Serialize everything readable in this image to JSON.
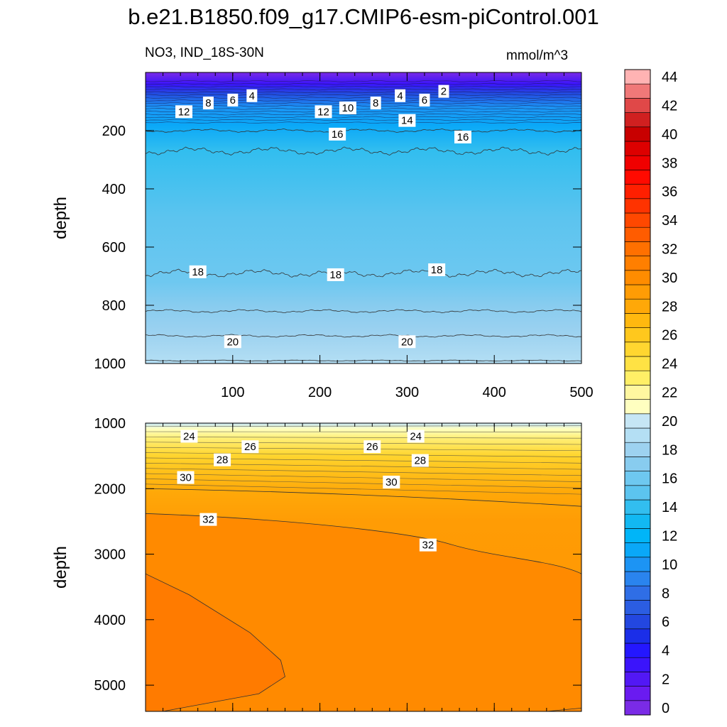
{
  "figure": {
    "title": "b.e21.B1850.f09_g17.CMIP6-esm-piControl.001",
    "subtitle": "NO3, IND_18S-30N",
    "units": "mmol/m^3"
  },
  "chart_data": [
    {
      "type": "contour",
      "panel": "upper",
      "xlim": [
        0,
        500
      ],
      "ylim": [
        1000,
        0
      ],
      "xticks": [
        "100",
        "200",
        "300",
        "400",
        "500"
      ],
      "xtick_values": [
        100,
        200,
        300,
        400,
        500
      ],
      "yticks": [
        "200",
        "400",
        "600",
        "800",
        "1000"
      ],
      "ytick_values": [
        200,
        400,
        600,
        800,
        1000
      ],
      "ylabel": "depth",
      "xlabel": "",
      "contour_lines": [
        {
          "level": 16,
          "depth": 200,
          "amp": 6
        },
        {
          "level": 17,
          "depth": 270,
          "amp": 14
        },
        {
          "level": 18,
          "depth": 690,
          "amp": 14
        },
        {
          "level": 19,
          "depth": 820,
          "amp": 6
        },
        {
          "level": 20,
          "depth": 905,
          "amp": 5
        },
        {
          "level": 21,
          "depth": 990,
          "amp": 2
        }
      ],
      "contour_labels": [
        {
          "text": "2",
          "x": 342,
          "y": 65
        },
        {
          "text": "4",
          "x": 122,
          "y": 80
        },
        {
          "text": "4",
          "x": 292,
          "y": 80
        },
        {
          "text": "6",
          "x": 100,
          "y": 95
        },
        {
          "text": "6",
          "x": 320,
          "y": 95
        },
        {
          "text": "8",
          "x": 72,
          "y": 105
        },
        {
          "text": "8",
          "x": 264,
          "y": 105
        },
        {
          "text": "10",
          "x": 232,
          "y": 122
        },
        {
          "text": "12",
          "x": 44,
          "y": 135
        },
        {
          "text": "12",
          "x": 204,
          "y": 135
        },
        {
          "text": "14",
          "x": 300,
          "y": 165
        },
        {
          "text": "16",
          "x": 220,
          "y": 212
        },
        {
          "text": "16",
          "x": 364,
          "y": 222
        },
        {
          "text": "18",
          "x": 60,
          "y": 685
        },
        {
          "text": "18",
          "x": 218,
          "y": 695
        },
        {
          "text": "18",
          "x": 334,
          "y": 678
        },
        {
          "text": "20",
          "x": 100,
          "y": 925
        },
        {
          "text": "20",
          "x": 300,
          "y": 925
        }
      ]
    },
    {
      "type": "contour",
      "panel": "lower",
      "xlim": [
        0,
        500
      ],
      "ylim": [
        5400,
        1000
      ],
      "yticks": [
        "1000",
        "2000",
        "3000",
        "4000",
        "5000"
      ],
      "ytick_values": [
        1000,
        2000,
        3000,
        4000,
        5000
      ],
      "ylabel": "depth",
      "xlabel": "",
      "contour_lines": [
        {
          "level": 30,
          "depth_left": 2000,
          "depth_right": 2270
        },
        {
          "level": 32,
          "depth_left": 2380,
          "depth_right": 3300
        },
        {
          "level": 33,
          "depth_left": 3300,
          "depth_right": 5350
        }
      ],
      "contour_labels": [
        {
          "text": "24",
          "x": 50,
          "y": 1200
        },
        {
          "text": "24",
          "x": 310,
          "y": 1200
        },
        {
          "text": "26",
          "x": 120,
          "y": 1360
        },
        {
          "text": "26",
          "x": 260,
          "y": 1360
        },
        {
          "text": "28",
          "x": 88,
          "y": 1560
        },
        {
          "text": "28",
          "x": 315,
          "y": 1570
        },
        {
          "text": "30",
          "x": 46,
          "y": 1830
        },
        {
          "text": "30",
          "x": 282,
          "y": 1900
        },
        {
          "text": "32",
          "x": 72,
          "y": 2470
        },
        {
          "text": "32",
          "x": 324,
          "y": 2860
        }
      ]
    },
    {
      "type": "colorbar",
      "levels": [
        0,
        1,
        2,
        3,
        4,
        5,
        6,
        7,
        8,
        9,
        10,
        11,
        12,
        13,
        14,
        15,
        16,
        17,
        18,
        19,
        20,
        21,
        22,
        23,
        24,
        25,
        26,
        27,
        28,
        29,
        30,
        31,
        32,
        33,
        34,
        35,
        36,
        37,
        38,
        39,
        40,
        41,
        42,
        43,
        44
      ],
      "tick_labels": [
        "0",
        "2",
        "4",
        "6",
        "8",
        "10",
        "12",
        "14",
        "16",
        "18",
        "20",
        "22",
        "24",
        "26",
        "28",
        "30",
        "32",
        "34",
        "36",
        "38",
        "40",
        "42",
        "44"
      ],
      "colors": [
        "#7a2be6",
        "#6a1bf0",
        "#5218f5",
        "#3b14fb",
        "#2417ff",
        "#1b2ee8",
        "#2347e0",
        "#2b5de2",
        "#2f6ee6",
        "#2a84ee",
        "#1c94f4",
        "#0aa8f8",
        "#00b5f8",
        "#12b8f2",
        "#32beef",
        "#5cc4ef",
        "#6ec8f0",
        "#88ccef",
        "#9dd2f0",
        "#b4dff4",
        "#c6e6f5",
        "#ffffc0",
        "#fff7a0",
        "#ffef66",
        "#ffe244",
        "#ffd630",
        "#ffc81d",
        "#ffb80f",
        "#ffa808",
        "#ff9c05",
        "#ff8c00",
        "#ff7f00",
        "#ff7000",
        "#ff5c00",
        "#ff4800",
        "#ff3300",
        "#ff1f00",
        "#ff0a00",
        "#f00000",
        "#dd0000",
        "#c80000",
        "#d02020",
        "#e04848",
        "#f07878",
        "#ffb3b3"
      ]
    }
  ]
}
